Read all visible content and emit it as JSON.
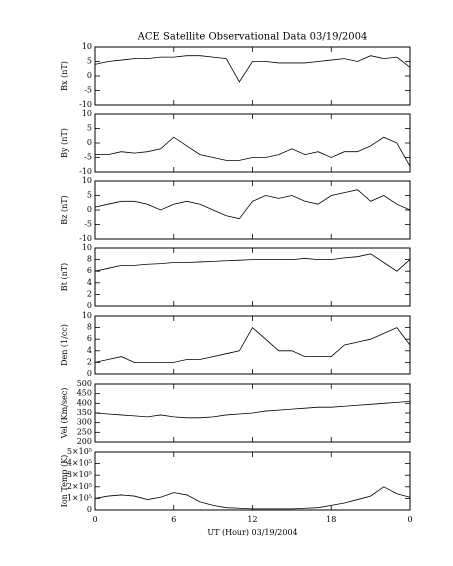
{
  "chart_data": [
    {
      "type": "line",
      "title": "ACE Satellite Observational Data  03/19/2004",
      "ylabel": "Bx (nT)",
      "x": [
        0,
        1,
        2,
        3,
        4,
        5,
        6,
        7,
        8,
        9,
        10,
        11,
        12,
        13,
        14,
        15,
        16,
        17,
        18,
        19,
        20,
        21,
        22,
        23,
        24
      ],
      "series": [
        {
          "name": "Bx",
          "color": "#000000",
          "values": [
            4,
            5,
            5.5,
            6,
            6,
            6.5,
            6.5,
            7,
            7,
            6.5,
            6,
            -2,
            5,
            5,
            4.5,
            4.5,
            4.5,
            5,
            5.5,
            6,
            5,
            7,
            6,
            6.5,
            3
          ]
        }
      ],
      "ylim": [
        -10,
        10
      ],
      "yticks": [
        10,
        5,
        0,
        -5,
        -10
      ]
    },
    {
      "type": "line",
      "ylabel": "By (nT)",
      "x": [
        0,
        1,
        2,
        3,
        4,
        5,
        6,
        7,
        8,
        9,
        10,
        11,
        12,
        13,
        14,
        15,
        16,
        17,
        18,
        19,
        20,
        21,
        22,
        23,
        24
      ],
      "series": [
        {
          "name": "By",
          "color": "#000000",
          "values": [
            -4,
            -4,
            -3,
            -3.5,
            -3,
            -2,
            2,
            -1,
            -4,
            -5,
            -6,
            -6,
            -5,
            -5,
            -4,
            -2,
            -4,
            -3,
            -5,
            -3,
            -3,
            -1,
            2,
            0,
            -8
          ]
        }
      ],
      "ylim": [
        -10,
        10
      ],
      "yticks": [
        10,
        5,
        0,
        -5,
        -10
      ]
    },
    {
      "type": "line",
      "ylabel": "Bz (nT)",
      "x": [
        0,
        1,
        2,
        3,
        4,
        5,
        6,
        7,
        8,
        9,
        10,
        11,
        12,
        13,
        14,
        15,
        16,
        17,
        18,
        19,
        20,
        21,
        22,
        23,
        24
      ],
      "series": [
        {
          "name": "Bz",
          "color": "#000000",
          "values": [
            1,
            2,
            3,
            3,
            2,
            0,
            2,
            3,
            2,
            0,
            -2,
            -3,
            3,
            5,
            4,
            5,
            3,
            2,
            5,
            6,
            7,
            3,
            5,
            2,
            0
          ]
        }
      ],
      "ylim": [
        -10,
        10
      ],
      "yticks": [
        10,
        5,
        0,
        -5,
        -10
      ]
    },
    {
      "type": "line",
      "ylabel": "Bt (nT)",
      "x": [
        0,
        1,
        2,
        3,
        4,
        5,
        6,
        7,
        8,
        9,
        10,
        11,
        12,
        13,
        14,
        15,
        16,
        17,
        18,
        19,
        20,
        21,
        22,
        23,
        24
      ],
      "series": [
        {
          "name": "Bt",
          "color": "#000000",
          "values": [
            6,
            6.5,
            7,
            7,
            7.2,
            7.3,
            7.5,
            7.5,
            7.6,
            7.7,
            7.8,
            7.9,
            8,
            8,
            8,
            8,
            8.2,
            8,
            8,
            8.3,
            8.5,
            9,
            7.5,
            6,
            8
          ]
        }
      ],
      "ylim": [
        0,
        10
      ],
      "yticks": [
        10,
        8,
        6,
        4,
        2,
        0
      ]
    },
    {
      "type": "line",
      "ylabel": "Den (1/cc)",
      "x": [
        0,
        1,
        2,
        3,
        4,
        5,
        6,
        7,
        8,
        9,
        10,
        11,
        12,
        13,
        14,
        15,
        16,
        17,
        18,
        19,
        20,
        21,
        22,
        23,
        24
      ],
      "series": [
        {
          "name": "Den",
          "color": "#000000",
          "values": [
            2,
            2.5,
            3,
            2,
            2,
            2,
            2,
            2.5,
            2.5,
            3,
            3.5,
            4,
            8,
            6,
            4,
            4,
            3,
            3,
            3,
            5,
            5.5,
            6,
            7,
            8,
            5
          ]
        }
      ],
      "ylim": [
        0,
        10
      ],
      "yticks": [
        10,
        8,
        6,
        4,
        2,
        0
      ]
    },
    {
      "type": "line",
      "ylabel": "Vel (Km/sec)",
      "x": [
        0,
        1,
        2,
        3,
        4,
        5,
        6,
        7,
        8,
        9,
        10,
        11,
        12,
        13,
        14,
        15,
        16,
        17,
        18,
        19,
        20,
        21,
        22,
        23,
        24
      ],
      "series": [
        {
          "name": "Vel",
          "color": "#000000",
          "values": [
            350,
            345,
            340,
            335,
            330,
            340,
            330,
            325,
            325,
            330,
            340,
            345,
            350,
            360,
            365,
            370,
            375,
            380,
            380,
            385,
            390,
            395,
            400,
            405,
            410
          ]
        }
      ],
      "ylim": [
        200,
        500
      ],
      "yticks": [
        500,
        450,
        400,
        350,
        300,
        250,
        200
      ]
    },
    {
      "type": "line",
      "ylabel": "Ion Temp (K)",
      "xlabel": "UT (Hour)  03/19/2004",
      "x": [
        0,
        1,
        2,
        3,
        4,
        5,
        6,
        7,
        8,
        9,
        10,
        11,
        12,
        13,
        14,
        15,
        16,
        17,
        18,
        19,
        20,
        21,
        22,
        23,
        24
      ],
      "series": [
        {
          "name": "Ion Temp",
          "color": "#000000",
          "values": [
            100000,
            120000,
            130000,
            120000,
            90000,
            110000,
            150000,
            130000,
            70000,
            40000,
            20000,
            15000,
            10000,
            10000,
            10000,
            10000,
            15000,
            20000,
            40000,
            60000,
            90000,
            120000,
            200000,
            140000,
            110000
          ]
        }
      ],
      "ylim": [
        0,
        500000
      ],
      "yticks": [
        {
          "value": 500000,
          "label": "5×10⁵"
        },
        {
          "value": 400000,
          "label": "4×10⁵"
        },
        {
          "value": 300000,
          "label": "3×10⁵"
        },
        {
          "value": 200000,
          "label": "2×10⁵"
        },
        {
          "value": 100000,
          "label": "1×10⁵"
        },
        0
      ],
      "xlim": [
        0,
        24
      ],
      "xticks": [
        0,
        6,
        12,
        18,
        {
          "value": 24,
          "label": "0"
        }
      ]
    }
  ]
}
